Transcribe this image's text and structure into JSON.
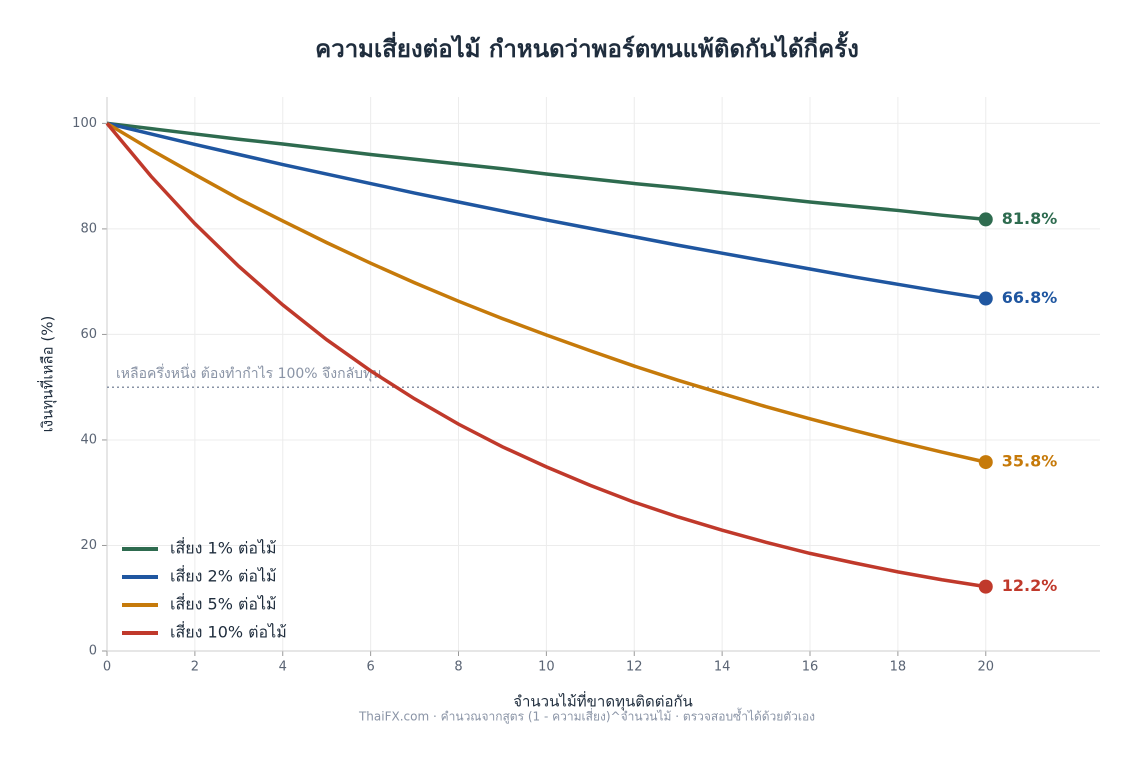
{
  "chart_data": {
    "type": "line",
    "title": "ความเสี่ยงต่อไม้ กำหนดว่าพอร์ตทนแพ้ติดกันได้กี่ครั้ง",
    "x_label": "จำนวนไม้ที่ขาดทุนติดต่อกัน",
    "y_label": "เงินทุนที่เหลือ (%)",
    "footer": "ThaiFX.com  ·  คำนวณจากสูตร (1 - ความเสี่ยง)^จำนวนไม้  ·  ตรวจสอบซ้ำได้ด้วยตัวเอง",
    "x": [
      0,
      1,
      2,
      3,
      4,
      5,
      6,
      7,
      8,
      9,
      10,
      11,
      12,
      13,
      14,
      15,
      16,
      17,
      18,
      19,
      20
    ],
    "series": [
      {
        "name": "เสี่ยง 1% ต่อไม้",
        "color": "#2e6b4f",
        "values": [
          100,
          99,
          98,
          97,
          96.1,
          95.1,
          94.1,
          93.2,
          92.3,
          91.4,
          90.4,
          89.5,
          88.6,
          87.8,
          86.9,
          86,
          85.1,
          84.3,
          83.5,
          82.6,
          81.8
        ],
        "value_labels": [
          null,
          null,
          null,
          null,
          null,
          null,
          null,
          null,
          null,
          null,
          null,
          null,
          null,
          null,
          null,
          null,
          null,
          null,
          null,
          null,
          "81.8%"
        ]
      },
      {
        "name": "เสี่ยง 2% ต่อไม้",
        "color": "#1f56a0",
        "values": [
          100,
          98,
          96,
          94.1,
          92.2,
          90.4,
          88.6,
          86.8,
          85.1,
          83.4,
          81.7,
          80.1,
          78.5,
          76.9,
          75.4,
          73.9,
          72.4,
          70.9,
          69.5,
          68.1,
          66.8
        ],
        "value_labels": [
          null,
          null,
          null,
          null,
          null,
          null,
          null,
          null,
          null,
          null,
          null,
          null,
          null,
          null,
          null,
          null,
          null,
          null,
          null,
          null,
          "66.8%"
        ]
      },
      {
        "name": "เสี่ยง 5% ต่อไม้",
        "color": "#c67a0a",
        "values": [
          100,
          95,
          90.3,
          85.7,
          81.5,
          77.4,
          73.5,
          69.8,
          66.3,
          63,
          59.9,
          56.9,
          54,
          51.3,
          48.8,
          46.3,
          44,
          41.8,
          39.7,
          37.7,
          35.8
        ],
        "value_labels": [
          null,
          null,
          null,
          null,
          null,
          null,
          null,
          null,
          null,
          null,
          null,
          null,
          null,
          null,
          null,
          null,
          null,
          null,
          null,
          null,
          "35.8%"
        ]
      },
      {
        "name": "เสี่ยง 10% ต่อไม้",
        "color": "#c0392b",
        "values": [
          100,
          90,
          81,
          72.9,
          65.6,
          59,
          53.1,
          47.8,
          43,
          38.7,
          34.9,
          31.4,
          28.2,
          25.4,
          22.9,
          20.6,
          18.5,
          16.7,
          15,
          13.5,
          12.2
        ],
        "value_labels": [
          null,
          null,
          null,
          null,
          null,
          null,
          null,
          null,
          null,
          null,
          null,
          null,
          null,
          null,
          null,
          null,
          null,
          null,
          null,
          null,
          "12.2%"
        ]
      }
    ],
    "reference_line": {
      "value": 50,
      "label": "เหลือครึ่งหนึ่ง  ต้องทำกำไร 100% จึงกลับทุน",
      "color": "#8a94a6"
    },
    "xlim": [
      0,
      22.6
    ],
    "ylim": [
      0,
      105
    ],
    "xticks": [
      0,
      2,
      4,
      6,
      8,
      10,
      12,
      14,
      16,
      18,
      20
    ],
    "yticks": [
      0,
      20,
      40,
      60,
      80,
      100
    ],
    "grid": true,
    "legend": "lower left"
  }
}
